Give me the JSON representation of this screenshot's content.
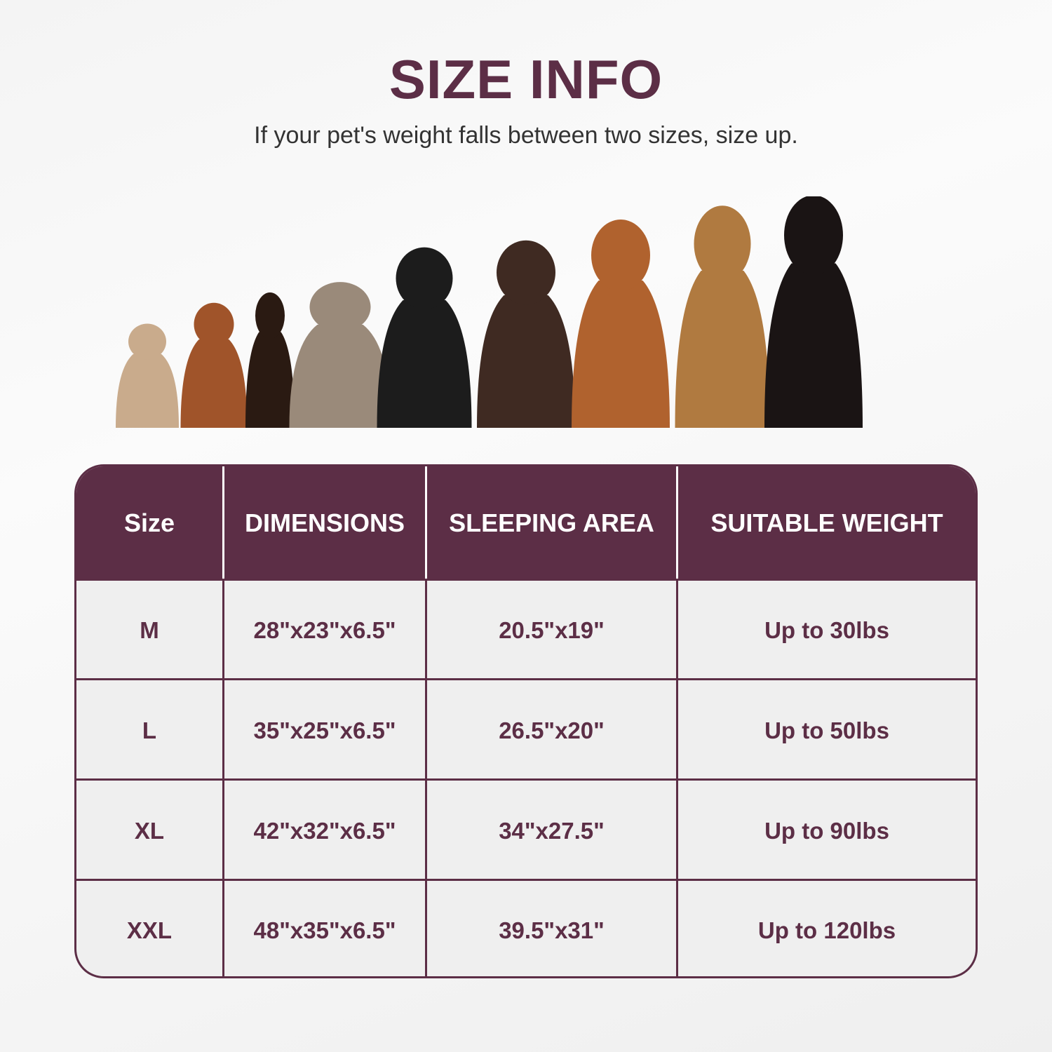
{
  "title": "SIZE INFO",
  "subtitle": "If your pet's weight falls between two sizes, size up.",
  "colors": {
    "accent": "#5c2e46",
    "cell_bg": "#efefef"
  },
  "dogs": [
    {
      "name": "french-bulldog",
      "color": "#c9ab8c"
    },
    {
      "name": "cavalier-spaniel",
      "color": "#a0542a"
    },
    {
      "name": "miniature-pinscher",
      "color": "#2a1a12"
    },
    {
      "name": "english-bulldog",
      "color": "#9a8a7a"
    },
    {
      "name": "border-collie",
      "color": "#1c1c1c"
    },
    {
      "name": "chocolate-labrador",
      "color": "#3f2a22"
    },
    {
      "name": "vizsla",
      "color": "#b0622e"
    },
    {
      "name": "german-shepherd",
      "color": "#b07a40"
    },
    {
      "name": "bernese-mountain-dog",
      "color": "#1a1414"
    }
  ],
  "table": {
    "headers": [
      "Size",
      "DIMENSIONS",
      "SLEEPING AREA",
      "SUITABLE WEIGHT"
    ],
    "rows": [
      [
        "M",
        "28\"x23\"x6.5\"",
        "20.5\"x19\"",
        "Up to 30lbs"
      ],
      [
        "L",
        "35\"x25\"x6.5\"",
        "26.5\"x20\"",
        "Up to 50lbs"
      ],
      [
        "XL",
        "42\"x32\"x6.5\"",
        "34\"x27.5\"",
        "Up to 90lbs"
      ],
      [
        "XXL",
        "48\"x35\"x6.5\"",
        "39.5\"x31\"",
        "Up to 120lbs"
      ]
    ]
  }
}
